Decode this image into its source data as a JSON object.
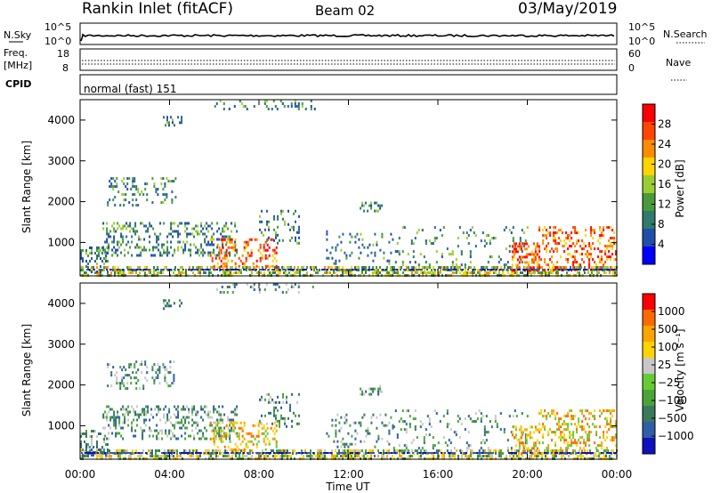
{
  "header": {
    "title": "Rankin Inlet (fitACF)",
    "beam": "Beam 02",
    "date": "03/May/2019"
  },
  "top_panels": {
    "nsky": {
      "label": "N.Sky",
      "ticks": [
        "10^5",
        "10^0"
      ],
      "right_label": "N.Search",
      "right_ticks": [
        "10^5",
        "10^0"
      ]
    },
    "freq": {
      "label_line1": "Freq.",
      "label_line2": "[MHz]",
      "ticks": [
        "18",
        "8"
      ],
      "right_label": "Nave",
      "right_ticks": [
        "60",
        "0"
      ]
    },
    "cpid": {
      "label": "CPID",
      "mode": "normal (fast) 151"
    }
  },
  "chart_data": [
    {
      "type": "heatmap",
      "name": "power",
      "ylabel": "Slant Range [km]",
      "yticks": [
        "4000",
        "3000",
        "2000",
        "1000"
      ],
      "ylim": [
        180,
        4500
      ],
      "colorbar_label": "Power [dB]",
      "colorbar_ticks": [
        "28",
        "24",
        "20",
        "16",
        "12",
        "8",
        "4"
      ],
      "colors": [
        "#0000ff",
        "#1f4fa8",
        "#2f7a6a",
        "#4a9a3a",
        "#9acd32",
        "#ffd400",
        "#ff8c00",
        "#ff4500",
        "#ff0000"
      ]
    },
    {
      "type": "heatmap",
      "name": "velocity",
      "ylabel": "Slant Range [km]",
      "yticks": [
        "4000",
        "3000",
        "2000",
        "1000"
      ],
      "ylim": [
        180,
        4500
      ],
      "colorbar_label": "Velocity [m s⁻¹]",
      "colorbar_ticks": [
        "1000",
        "500",
        "100",
        "25",
        "−25",
        "−100",
        "−500",
        "−1000"
      ],
      "colors": [
        "#1010c0",
        "#2f5ea8",
        "#3a7a5a",
        "#4aa43a",
        "#66cc33",
        "#c8c8c8",
        "#ffd400",
        "#ffa500",
        "#ff6a00",
        "#ff0000"
      ]
    }
  ],
  "xaxis": {
    "ticks": [
      "00:00",
      "04:00",
      "08:00",
      "12:00",
      "16:00",
      "20:00",
      "00:00"
    ],
    "label": "Time UT"
  }
}
